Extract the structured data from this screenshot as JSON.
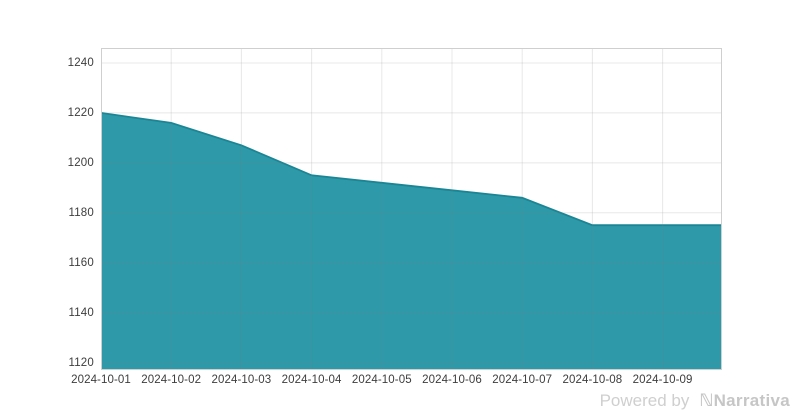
{
  "watermark": {
    "powered_by": "Powered by",
    "logo_glyph": "ℕ",
    "brand": "Narrativa"
  },
  "chart_data": {
    "type": "area",
    "title": "",
    "xlabel": "",
    "ylabel": "",
    "categories": [
      "2024-10-01",
      "2024-10-02",
      "2024-10-03",
      "2024-10-04",
      "2024-10-05",
      "2024-10-06",
      "2024-10-07",
      "2024-10-08",
      "2024-10-09"
    ],
    "values": [
      1220,
      1216,
      1207,
      1195,
      1192,
      1189,
      1186,
      1175,
      1175
    ],
    "extend_right_to_plot_edge": true,
    "extend_right_value": 1175,
    "y_ticks": [
      1240,
      1220,
      1200,
      1180,
      1160,
      1140,
      1120
    ],
    "ylim": [
      1117,
      1246
    ],
    "grid": true,
    "legend": "none",
    "colors": {
      "area_fill": "#2e99a8",
      "area_line": "#1a8695",
      "gridline": "#e8e8e8",
      "plot_border": "#cfcfcf",
      "tick_text": "#3d3d3d",
      "watermark_text": "#c9c9c9"
    }
  }
}
